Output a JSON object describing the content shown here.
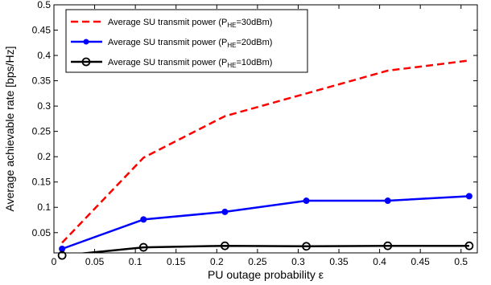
{
  "chart_data": {
    "type": "line",
    "title": "",
    "xlabel": "PU outage probability ε",
    "ylabel": "Average achievable rate [bps/Hz]",
    "xlim": [
      0,
      0.52
    ],
    "ylim": [
      0.01,
      0.5
    ],
    "xticks": [
      "0",
      "0.05",
      "0.1",
      "0.15",
      "0.2",
      "0.25",
      "0.3",
      "0.35",
      "0.4",
      "0.45",
      "0.5"
    ],
    "yticks": [
      "0.05",
      "0.1",
      "0.15",
      "0.2",
      "0.25",
      "0.3",
      "0.35",
      "0.4",
      "0.45",
      "0.5"
    ],
    "grid": false,
    "legend_position": "top-left",
    "series": [
      {
        "name_main": "Average SU transmit power (P",
        "name_sub": "HE",
        "name_tail": "=30dBm)",
        "color": "#ff0000",
        "style": "dashed",
        "marker": "none",
        "x": [
          0.01,
          0.11,
          0.21,
          0.31,
          0.41,
          0.51
        ],
        "y": [
          0.03,
          0.198,
          0.28,
          0.325,
          0.37,
          0.39
        ]
      },
      {
        "name_main": "Average SU transmit power (P",
        "name_sub": "HE",
        "name_tail": "=20dBm)",
        "color": "#0000ff",
        "style": "solid",
        "marker": "dot",
        "x": [
          0.01,
          0.11,
          0.21,
          0.31,
          0.41,
          0.51
        ],
        "y": [
          0.018,
          0.076,
          0.091,
          0.113,
          0.113,
          0.122
        ]
      },
      {
        "name_main": "Average SU transmit power (P",
        "name_sub": "HE",
        "name_tail": "=10dBm)",
        "color": "#000000",
        "style": "solid",
        "marker": "circle",
        "x": [
          0.01,
          0.11,
          0.21,
          0.31,
          0.41,
          0.51
        ],
        "y": [
          0.005,
          0.021,
          0.024,
          0.023,
          0.024,
          0.024
        ]
      }
    ]
  }
}
